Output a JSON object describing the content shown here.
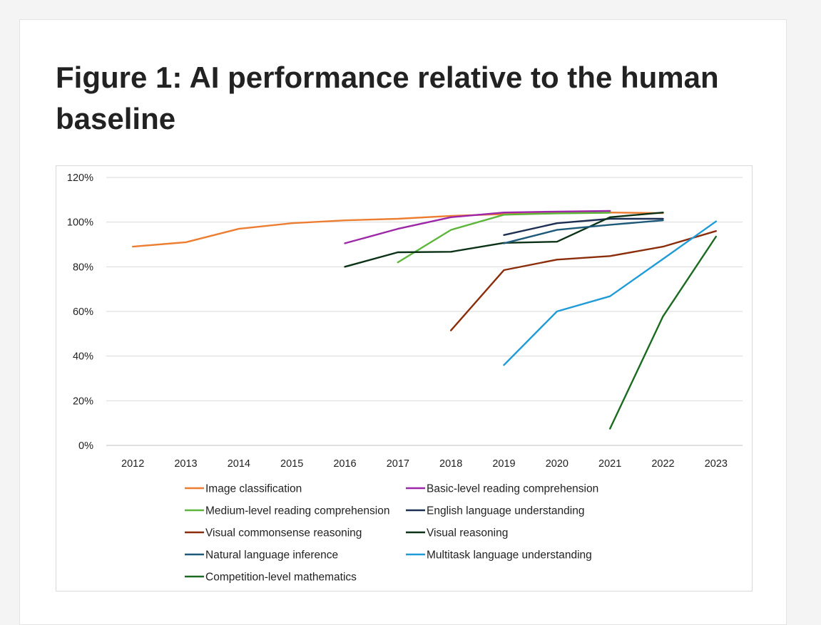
{
  "page": {
    "title": "Figure 1: AI performance relative to the human baseline"
  },
  "chart_data": {
    "type": "line",
    "title": "",
    "xlabel": "",
    "ylabel": "",
    "x": [
      2012,
      2013,
      2014,
      2015,
      2016,
      2017,
      2018,
      2019,
      2020,
      2021,
      2022,
      2023
    ],
    "ylim": [
      0,
      120
    ],
    "yticks": [
      0,
      20,
      40,
      60,
      80,
      100,
      120
    ],
    "ytick_labels": [
      "0%",
      "20%",
      "40%",
      "60%",
      "80%",
      "100%",
      "120%"
    ],
    "xtick_labels": [
      "2012",
      "2013",
      "2014",
      "2015",
      "2016",
      "2017",
      "2018",
      "2019",
      "2020",
      "2021",
      "2022",
      "2023"
    ],
    "grid": true,
    "legend_position": "bottom",
    "series": [
      {
        "name": "Image classification",
        "color": "#ed7d31",
        "points": [
          [
            2012,
            89
          ],
          [
            2013,
            91
          ],
          [
            2014,
            97
          ],
          [
            2015,
            99.5
          ],
          [
            2016,
            100.8
          ],
          [
            2017,
            101.5
          ],
          [
            2018,
            102.8
          ],
          [
            2019,
            103.6
          ],
          [
            2020,
            104
          ],
          [
            2021,
            104.3
          ],
          [
            2022,
            104
          ]
        ]
      },
      {
        "name": "Basic-level reading comprehension",
        "color": "#9c27a8",
        "points": [
          [
            2016,
            90.5
          ],
          [
            2017,
            97
          ],
          [
            2018,
            102.2
          ],
          [
            2019,
            104.3
          ],
          [
            2020,
            104.7
          ],
          [
            2021,
            105
          ]
        ]
      },
      {
        "name": "Medium-level reading comprehension",
        "color": "#5db63b",
        "points": [
          [
            2017,
            82
          ],
          [
            2018,
            96.5
          ],
          [
            2019,
            103.3
          ],
          [
            2020,
            103.9
          ],
          [
            2021,
            104.2
          ]
        ]
      },
      {
        "name": "English language understanding",
        "color": "#1d2f52",
        "points": [
          [
            2019,
            94.2
          ],
          [
            2020,
            99.5
          ],
          [
            2021,
            101.5
          ],
          [
            2022,
            101.5
          ]
        ]
      },
      {
        "name": "Visual commonsense reasoning",
        "color": "#8b2d0b",
        "points": [
          [
            2018,
            51.5
          ],
          [
            2019,
            78.5
          ],
          [
            2020,
            83.2
          ],
          [
            2021,
            84.8
          ],
          [
            2022,
            89
          ],
          [
            2023,
            96
          ]
        ]
      },
      {
        "name": "Visual reasoning",
        "color": "#0b3216",
        "points": [
          [
            2016,
            80
          ],
          [
            2017,
            86.5
          ],
          [
            2018,
            86.7
          ],
          [
            2019,
            90.7
          ],
          [
            2020,
            91.2
          ],
          [
            2021,
            102.2
          ],
          [
            2022,
            104.3
          ]
        ]
      },
      {
        "name": "Natural language inference",
        "color": "#1d5a7a",
        "points": [
          [
            2019,
            90.5
          ],
          [
            2020,
            96.5
          ],
          [
            2021,
            98.8
          ],
          [
            2022,
            100.8
          ]
        ]
      },
      {
        "name": "Multitask language understanding",
        "color": "#1f9bd7",
        "points": [
          [
            2019,
            36
          ],
          [
            2020,
            60
          ],
          [
            2021,
            66.8
          ],
          [
            2022,
            83.5
          ],
          [
            2023,
            100.3
          ]
        ]
      },
      {
        "name": "Competition-level mathematics",
        "color": "#1a6b1f",
        "points": [
          [
            2021,
            7.5
          ],
          [
            2022,
            57.8
          ],
          [
            2023,
            93.5
          ]
        ]
      }
    ]
  }
}
